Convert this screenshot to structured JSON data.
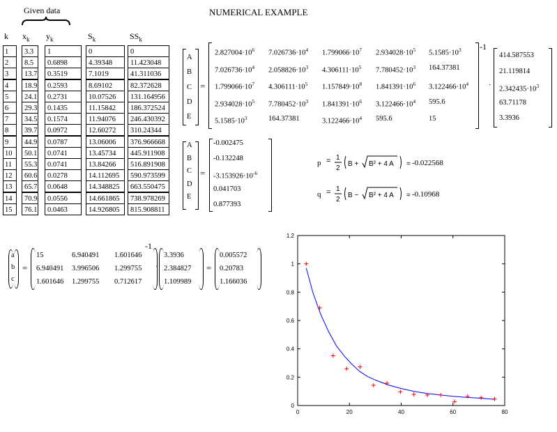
{
  "page_title": "NUMERICAL  EXAMPLE",
  "given_data_label": "Given data",
  "headers": {
    "k": "k",
    "x": "x",
    "x_sub": "k",
    "y": "y",
    "y_sub": "k",
    "S": "S",
    "S_sub": "k",
    "SS": "SS",
    "SS_sub": "k"
  },
  "table": {
    "k": [
      "1",
      "2",
      "3",
      "4",
      "5",
      "6",
      "7",
      "8",
      "9",
      "10",
      "11",
      "12",
      "13",
      "14",
      "15"
    ],
    "x": [
      "3.3",
      "8.5",
      "13.7",
      "18.9",
      "24.1",
      "29.3",
      "34.5",
      "39.7",
      "44.9",
      "50.1",
      "55.3",
      "60.6",
      "65.7",
      "70.9",
      "76.1"
    ],
    "y": [
      "1",
      "0.6898",
      "0.3519",
      "0.2593",
      "0.2731",
      "0.1435",
      "0.1574",
      "0.0972",
      "0.0787",
      "0.0741",
      "0.0741",
      "0.0278",
      "0.0648",
      "0.0556",
      "0.0463"
    ],
    "S": [
      "0",
      "4.39348",
      "7.1019",
      "8.69102",
      "10.07526",
      "11.15842",
      "11.94076",
      "12.60272",
      "13.06006",
      "13.45734",
      "13.84266",
      "14.112695",
      "14.348825",
      "14.661865",
      "14.926805"
    ],
    "SS": [
      "0",
      "11.423048",
      "41.311036",
      "82.372628",
      "131.164956",
      "186.372524",
      "246.430392",
      "310.24344",
      "376.966668",
      "445.911908",
      "516.891908",
      "590.973599",
      "663.550475",
      "738.978269",
      "815.908811"
    ]
  },
  "matrix_system": {
    "letters": [
      "A",
      "B",
      "C",
      "D",
      "E"
    ],
    "matrix": [
      [
        {
          "m": "2.827004",
          "e": "6"
        },
        {
          "m": "7.026736",
          "e": "4"
        },
        {
          "m": "1.799066",
          "e": "7"
        },
        {
          "m": "2.934028",
          "e": "5"
        },
        {
          "m": "5.1585",
          "e": "3"
        }
      ],
      [
        {
          "m": "7.026736",
          "e": "4"
        },
        {
          "m": "2.058826",
          "e": "3"
        },
        {
          "m": "4.306111",
          "e": "5"
        },
        {
          "m": "7.780452",
          "e": "3"
        },
        {
          "m": "164.37381",
          "e": ""
        }
      ],
      [
        {
          "m": "1.799066",
          "e": "7"
        },
        {
          "m": "4.306111",
          "e": "5"
        },
        {
          "m": "1.157849",
          "e": "8"
        },
        {
          "m": "1.841391",
          "e": "6"
        },
        {
          "m": "3.122466",
          "e": "4"
        }
      ],
      [
        {
          "m": "2.934028",
          "e": "5"
        },
        {
          "m": "7.780452",
          "e": "3"
        },
        {
          "m": "1.841391",
          "e": "6"
        },
        {
          "m": "3.122466",
          "e": "4"
        },
        {
          "m": "595.6",
          "e": ""
        }
      ],
      [
        {
          "m": "5.1585",
          "e": "3"
        },
        {
          "m": "164.37381",
          "e": ""
        },
        {
          "m": "3.122466",
          "e": "4"
        },
        {
          "m": "595.6",
          "e": ""
        },
        {
          "m": "15",
          "e": ""
        }
      ]
    ],
    "inverse_exp": "-1",
    "rhs": [
      {
        "m": "414.587553",
        "e": ""
      },
      {
        "m": "21.119814",
        "e": ""
      },
      {
        "m": "2.342435",
        "e": "3"
      },
      {
        "m": "63.71178",
        "e": ""
      },
      {
        "m": "3.3936",
        "e": ""
      }
    ],
    "result": [
      {
        "m": "-0.002475",
        "e": ""
      },
      {
        "m": "-0.132248",
        "e": ""
      },
      {
        "m": "-3.153926",
        "e": "-6"
      },
      {
        "m": "0.041703",
        "e": ""
      },
      {
        "m": "0.877393",
        "e": ""
      }
    ]
  },
  "pq": {
    "p_label": "p",
    "q_label": "q",
    "p_value": "-0.022568",
    "q_value": "-0.10968"
  },
  "abc_system": {
    "letters": [
      "a",
      "b",
      "c"
    ],
    "matrix": [
      [
        "15",
        "6.940491",
        "1.601646"
      ],
      [
        "6.940491",
        "3.996506",
        "1.299755"
      ],
      [
        "1.601646",
        "1.299755",
        "0.712617"
      ]
    ],
    "inverse_exp": "-1",
    "rhs": [
      "3.3936",
      "2.384827",
      "1.109989"
    ],
    "result": [
      "0.005572",
      "0.20783",
      "1.166036"
    ]
  },
  "chart_data": {
    "type": "scatter",
    "title": "",
    "xlabel": "",
    "ylabel": "",
    "xlim": [
      0,
      80
    ],
    "ylim": [
      0,
      1.2
    ],
    "x_ticks": [
      "0",
      "20",
      "40",
      "60",
      "80"
    ],
    "y_ticks": [
      "0",
      "0.2",
      "0.4",
      "0.6",
      "0.8",
      "1",
      "1.2"
    ],
    "grid": false,
    "points": {
      "x": [
        3.3,
        8.5,
        13.7,
        18.9,
        24.1,
        29.3,
        34.5,
        39.7,
        44.9,
        50.1,
        55.3,
        60.6,
        65.7,
        70.9,
        76.1
      ],
      "y": [
        1,
        0.6898,
        0.3519,
        0.2593,
        0.2731,
        0.1435,
        0.1574,
        0.0972,
        0.0787,
        0.0741,
        0.0741,
        0.0278,
        0.0648,
        0.0556,
        0.0463
      ],
      "color": "#ff0000"
    },
    "fit_curve": {
      "x": [
        3.3,
        6,
        9,
        12,
        15,
        18,
        21,
        24,
        27,
        30,
        35,
        40,
        45,
        50,
        55,
        60,
        65,
        70,
        76.1
      ],
      "y": [
        0.97,
        0.79,
        0.64,
        0.52,
        0.42,
        0.35,
        0.29,
        0.24,
        0.205,
        0.18,
        0.145,
        0.12,
        0.1,
        0.085,
        0.075,
        0.065,
        0.058,
        0.052,
        0.044
      ],
      "color": "#0000ff"
    }
  }
}
